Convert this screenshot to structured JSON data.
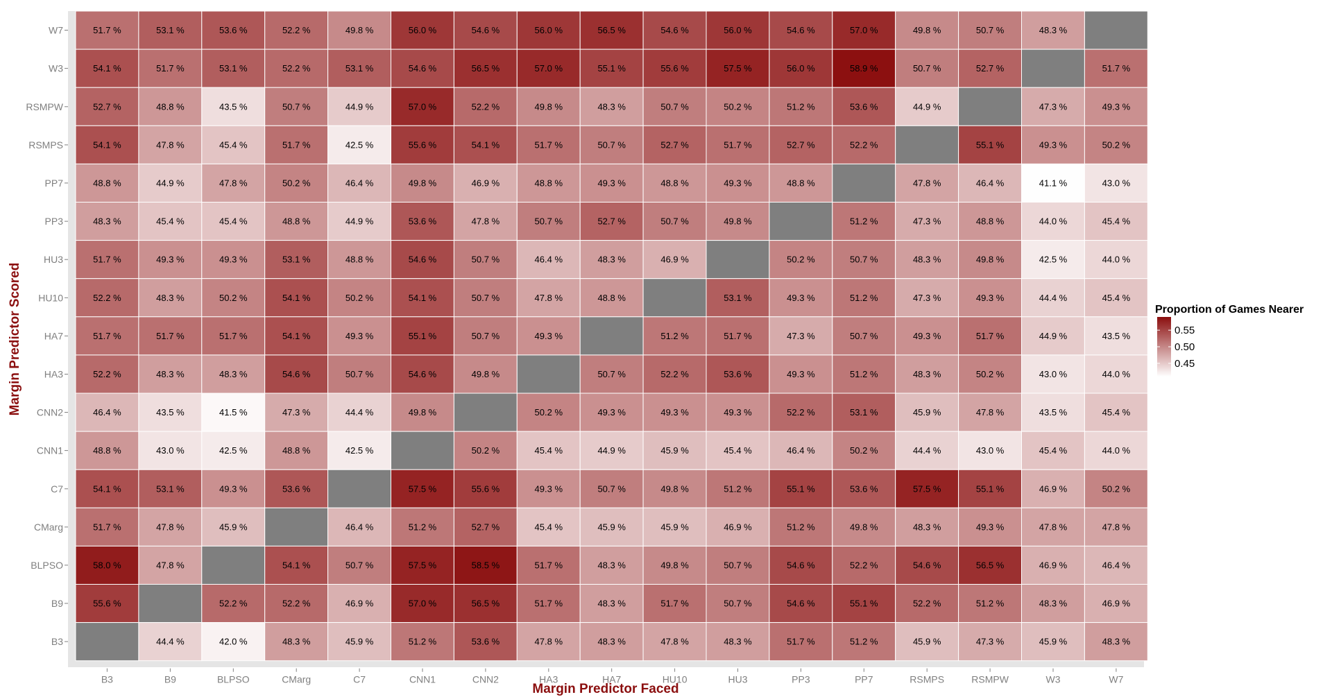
{
  "chart_data": {
    "type": "heatmap",
    "xlabel": "Margin Predictor Faced",
    "ylabel": "Margin Predictor Scored",
    "x_categories": [
      "B3",
      "B9",
      "BLPSO",
      "CMarg",
      "C7",
      "CNN1",
      "CNN2",
      "HA3",
      "HA7",
      "HU10",
      "HU3",
      "PP3",
      "PP7",
      "RSMPS",
      "RSMPW",
      "W3",
      "W7"
    ],
    "y_categories": [
      "W7",
      "W3",
      "RSMPW",
      "RSMPS",
      "PP7",
      "PP3",
      "HU3",
      "HU10",
      "HA7",
      "HA3",
      "CNN2",
      "CNN1",
      "C7",
      "CMarg",
      "BLPSO",
      "B9",
      "B3"
    ],
    "values": [
      [
        51.7,
        53.1,
        53.6,
        52.2,
        49.8,
        56.0,
        54.6,
        56.0,
        56.5,
        54.6,
        56.0,
        54.6,
        57.0,
        49.8,
        50.7,
        48.3,
        null
      ],
      [
        54.1,
        51.7,
        53.1,
        52.2,
        53.1,
        54.6,
        56.5,
        57.0,
        55.1,
        55.6,
        57.5,
        56.0,
        58.9,
        50.7,
        52.7,
        null,
        51.7
      ],
      [
        52.7,
        48.8,
        43.5,
        50.7,
        44.9,
        57.0,
        52.2,
        49.8,
        48.3,
        50.7,
        50.2,
        51.2,
        53.6,
        44.9,
        null,
        47.3,
        49.3
      ],
      [
        54.1,
        47.8,
        45.4,
        51.7,
        42.5,
        55.6,
        54.1,
        51.7,
        50.7,
        52.7,
        51.7,
        52.7,
        52.2,
        null,
        55.1,
        49.3,
        50.2
      ],
      [
        48.8,
        44.9,
        47.8,
        50.2,
        46.4,
        49.8,
        46.9,
        48.8,
        49.3,
        48.8,
        49.3,
        48.8,
        null,
        47.8,
        46.4,
        41.1,
        43.0
      ],
      [
        48.3,
        45.4,
        45.4,
        48.8,
        44.9,
        53.6,
        47.8,
        50.7,
        52.7,
        50.7,
        49.8,
        null,
        51.2,
        47.3,
        48.8,
        44.0,
        45.4
      ],
      [
        51.7,
        49.3,
        49.3,
        53.1,
        48.8,
        54.6,
        50.7,
        46.4,
        48.3,
        46.9,
        null,
        50.2,
        50.7,
        48.3,
        49.8,
        42.5,
        44.0
      ],
      [
        52.2,
        48.3,
        50.2,
        54.1,
        50.2,
        54.1,
        50.7,
        47.8,
        48.8,
        null,
        53.1,
        49.3,
        51.2,
        47.3,
        49.3,
        44.4,
        45.4
      ],
      [
        51.7,
        51.7,
        51.7,
        54.1,
        49.3,
        55.1,
        50.7,
        49.3,
        null,
        51.2,
        51.7,
        47.3,
        50.7,
        49.3,
        51.7,
        44.9,
        43.5
      ],
      [
        52.2,
        48.3,
        48.3,
        54.6,
        50.7,
        54.6,
        49.8,
        null,
        50.7,
        52.2,
        53.6,
        49.3,
        51.2,
        48.3,
        50.2,
        43.0,
        44.0
      ],
      [
        46.4,
        43.5,
        41.5,
        47.3,
        44.4,
        49.8,
        null,
        50.2,
        49.3,
        49.3,
        49.3,
        52.2,
        53.1,
        45.9,
        47.8,
        43.5,
        45.4
      ],
      [
        48.8,
        43.0,
        42.5,
        48.8,
        42.5,
        null,
        50.2,
        45.4,
        44.9,
        45.9,
        45.4,
        46.4,
        50.2,
        44.4,
        43.0,
        45.4,
        44.0
      ],
      [
        54.1,
        53.1,
        49.3,
        53.6,
        null,
        57.5,
        55.6,
        49.3,
        50.7,
        49.8,
        51.2,
        55.1,
        53.6,
        57.5,
        55.1,
        46.9,
        50.2
      ],
      [
        51.7,
        47.8,
        45.9,
        null,
        46.4,
        51.2,
        52.7,
        45.4,
        45.9,
        45.9,
        46.9,
        51.2,
        49.8,
        48.3,
        49.3,
        47.8,
        47.8
      ],
      [
        58.0,
        47.8,
        null,
        54.1,
        50.7,
        57.5,
        58.5,
        51.7,
        48.3,
        49.8,
        50.7,
        54.6,
        52.2,
        54.6,
        56.5,
        46.9,
        46.4
      ],
      [
        55.6,
        null,
        52.2,
        52.2,
        46.9,
        57.0,
        56.5,
        51.7,
        48.3,
        51.7,
        50.7,
        54.6,
        55.1,
        52.2,
        51.2,
        48.3,
        46.9
      ],
      [
        null,
        44.4,
        42.0,
        48.3,
        45.9,
        51.2,
        53.6,
        47.8,
        48.3,
        47.8,
        48.3,
        51.7,
        51.2,
        45.9,
        47.3,
        45.9,
        48.3
      ]
    ],
    "value_suffix": " %",
    "legend": {
      "title": "Proportion of Games Nearer",
      "position": "right",
      "ticks": [
        "0.55",
        "0.50",
        "0.45"
      ],
      "tick_values": [
        0.55,
        0.5,
        0.45
      ],
      "range": [
        0.41,
        0.59
      ]
    },
    "colors": {
      "low": "#ffffff",
      "high": "#8b0f0f",
      "missing": "#7f7f7f",
      "panel": "#e5e5e5",
      "grid": "#ffffff"
    }
  }
}
